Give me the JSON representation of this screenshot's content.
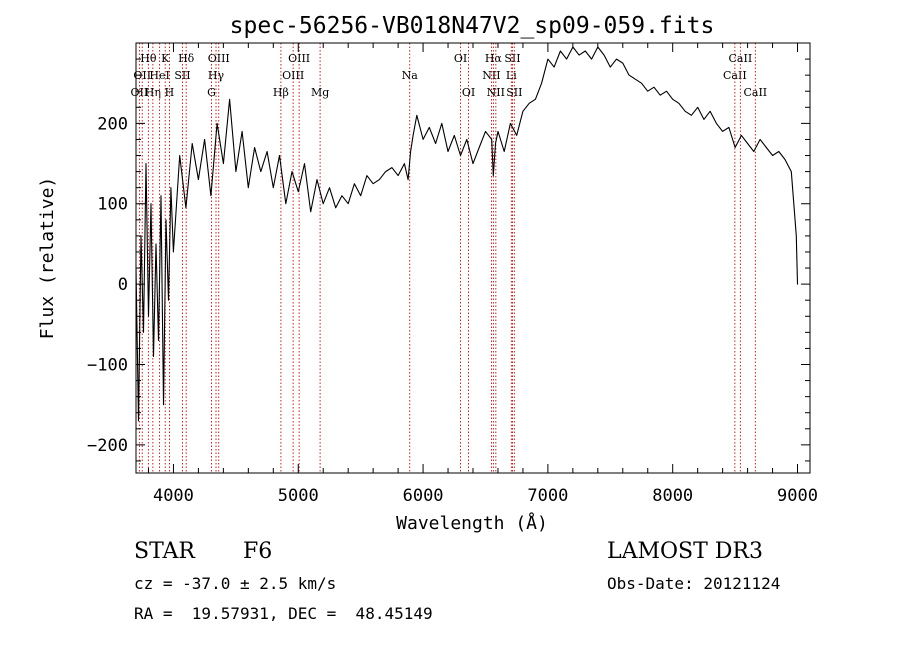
{
  "chart_data": {
    "type": "line",
    "title": "spec-56256-VB018N47V2_sp09-059.fits",
    "xlabel": "Wavelength (Å)",
    "ylabel": "Flux (relative)",
    "xlim": [
      3700,
      9100
    ],
    "ylim": [
      -235,
      300
    ],
    "xticks": [
      4000,
      5000,
      6000,
      7000,
      8000,
      9000
    ],
    "yticks": [
      -200,
      -100,
      0,
      100,
      200
    ],
    "series": [
      {
        "name": "spectrum",
        "x": [
          3700,
          3720,
          3740,
          3760,
          3780,
          3800,
          3820,
          3840,
          3860,
          3880,
          3900,
          3920,
          3940,
          3960,
          3980,
          4000,
          4050,
          4100,
          4150,
          4200,
          4250,
          4300,
          4350,
          4400,
          4450,
          4500,
          4550,
          4600,
          4650,
          4700,
          4750,
          4800,
          4850,
          4900,
          4950,
          5000,
          5050,
          5100,
          5150,
          5200,
          5250,
          5300,
          5350,
          5400,
          5450,
          5500,
          5550,
          5600,
          5650,
          5700,
          5750,
          5800,
          5850,
          5880,
          5900,
          5920,
          5950,
          6000,
          6050,
          6100,
          6150,
          6200,
          6250,
          6300,
          6350,
          6400,
          6450,
          6500,
          6550,
          6563,
          6580,
          6600,
          6650,
          6700,
          6750,
          6800,
          6850,
          6900,
          6950,
          7000,
          7050,
          7100,
          7150,
          7200,
          7250,
          7300,
          7350,
          7400,
          7450,
          7500,
          7550,
          7600,
          7650,
          7700,
          7750,
          7800,
          7850,
          7900,
          7950,
          8000,
          8050,
          8100,
          8150,
          8200,
          8250,
          8300,
          8350,
          8400,
          8450,
          8500,
          8550,
          8600,
          8650,
          8700,
          8750,
          8800,
          8850,
          8900,
          8950,
          8990,
          9000,
          9005
        ],
        "values": [
          20,
          -170,
          60,
          -60,
          150,
          -40,
          100,
          -90,
          50,
          -70,
          110,
          -150,
          80,
          -20,
          120,
          40,
          160,
          95,
          175,
          130,
          180,
          110,
          200,
          150,
          230,
          140,
          190,
          120,
          170,
          140,
          165,
          120,
          160,
          100,
          140,
          115,
          150,
          90,
          130,
          100,
          120,
          95,
          110,
          100,
          125,
          110,
          135,
          125,
          130,
          140,
          145,
          135,
          150,
          130,
          165,
          185,
          210,
          180,
          195,
          175,
          200,
          165,
          185,
          160,
          180,
          150,
          170,
          190,
          180,
          135,
          175,
          190,
          165,
          200,
          185,
          215,
          225,
          230,
          250,
          280,
          270,
          290,
          280,
          295,
          285,
          290,
          280,
          295,
          285,
          270,
          280,
          275,
          260,
          255,
          250,
          240,
          245,
          235,
          240,
          230,
          225,
          215,
          210,
          220,
          205,
          215,
          200,
          190,
          195,
          170,
          185,
          175,
          165,
          180,
          170,
          160,
          165,
          155,
          140,
          60,
          0,
          0
        ]
      }
    ],
    "line_marks": [
      {
        "wl": 3727,
        "label": "OII",
        "row": 2
      },
      {
        "wl": 3750,
        "label": "OII",
        "row": 1
      },
      {
        "wl": 3799,
        "label": "Hθ",
        "row": 0
      },
      {
        "wl": 3835,
        "label": "Hη",
        "row": 2
      },
      {
        "wl": 3889,
        "label": "HeI",
        "row": 1
      },
      {
        "wl": 3934,
        "label": "K",
        "row": 0
      },
      {
        "wl": 3968,
        "label": "H",
        "row": 2
      },
      {
        "wl": 4072,
        "label": "SII",
        "row": 1
      },
      {
        "wl": 4102,
        "label": "Hδ",
        "row": 0
      },
      {
        "wl": 4305,
        "label": "G",
        "row": 2
      },
      {
        "wl": 4341,
        "label": "Hγ",
        "row": 1
      },
      {
        "wl": 4363,
        "label": "OIII",
        "row": 0
      },
      {
        "wl": 4861,
        "label": "Hβ",
        "row": 2
      },
      {
        "wl": 4959,
        "label": "OIII",
        "row": 1
      },
      {
        "wl": 5007,
        "label": "OIII",
        "row": 0
      },
      {
        "wl": 5175,
        "label": "Mg",
        "row": 2
      },
      {
        "wl": 5893,
        "label": "Na",
        "row": 1
      },
      {
        "wl": 6300,
        "label": "OI",
        "row": 0
      },
      {
        "wl": 6364,
        "label": "OI",
        "row": 2
      },
      {
        "wl": 6548,
        "label": "NII",
        "row": 1
      },
      {
        "wl": 6563,
        "label": "Hα",
        "row": 0
      },
      {
        "wl": 6583,
        "label": "NII",
        "row": 2
      },
      {
        "wl": 6707,
        "label": "Li",
        "row": 1
      },
      {
        "wl": 6716,
        "label": "SII",
        "row": 0
      },
      {
        "wl": 6731,
        "label": "SII",
        "row": 2
      },
      {
        "wl": 8498,
        "label": "CaII",
        "row": 1
      },
      {
        "wl": 8542,
        "label": "CaII",
        "row": 0
      },
      {
        "wl": 8662,
        "label": "CaII",
        "row": 2
      }
    ]
  },
  "info": {
    "class": "STAR",
    "subclass": "F6",
    "survey": "LAMOST DR3",
    "cz": "cz = -37.0 ± 2.5 km/s",
    "obs_date": "Obs-Date: 20121124",
    "coords": "RA =  19.57931, DEC =  48.45149"
  }
}
